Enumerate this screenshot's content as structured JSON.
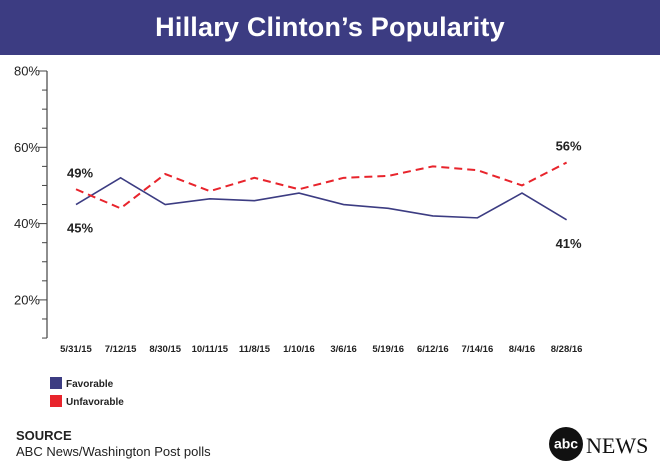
{
  "header": {
    "title": "Hillary Clinton’s Popularity"
  },
  "chart_data": {
    "type": "line",
    "title": "Hillary Clinton’s Popularity",
    "categories": [
      "5/31/15",
      "7/12/15",
      "8/30/15",
      "10/11/15",
      "11/8/15",
      "1/10/16",
      "3/6/16",
      "5/19/16",
      "6/12/16",
      "7/14/16",
      "8/4/16",
      "8/28/16"
    ],
    "series": [
      {
        "name": "Favorable",
        "color": "#3c3c82",
        "style": "solid",
        "values": [
          45,
          52,
          45,
          46.5,
          46,
          48,
          45,
          44,
          42,
          41.5,
          48,
          41
        ]
      },
      {
        "name": "Unfavorable",
        "color": "#e8242c",
        "style": "dashed",
        "values": [
          49,
          44,
          53,
          48.5,
          52,
          49,
          52,
          52.5,
          55,
          54,
          50,
          56
        ]
      }
    ],
    "y_ticks": [
      "80%",
      "60%",
      "40%",
      "20%"
    ],
    "ylim": [
      10,
      80
    ],
    "annotations": [
      {
        "series": 1,
        "index": 0,
        "text": "49%"
      },
      {
        "series": 0,
        "index": 0,
        "text": "45%"
      },
      {
        "series": 1,
        "index": 11,
        "text": "56%"
      },
      {
        "series": 0,
        "index": 11,
        "text": "41%"
      }
    ],
    "legend": [
      "Favorable",
      "Unfavorable"
    ]
  },
  "source": {
    "title": "SOURCE",
    "text": "ABC News/Washington Post polls"
  },
  "logo": {
    "abc": "abc",
    "news": "NEWS"
  }
}
